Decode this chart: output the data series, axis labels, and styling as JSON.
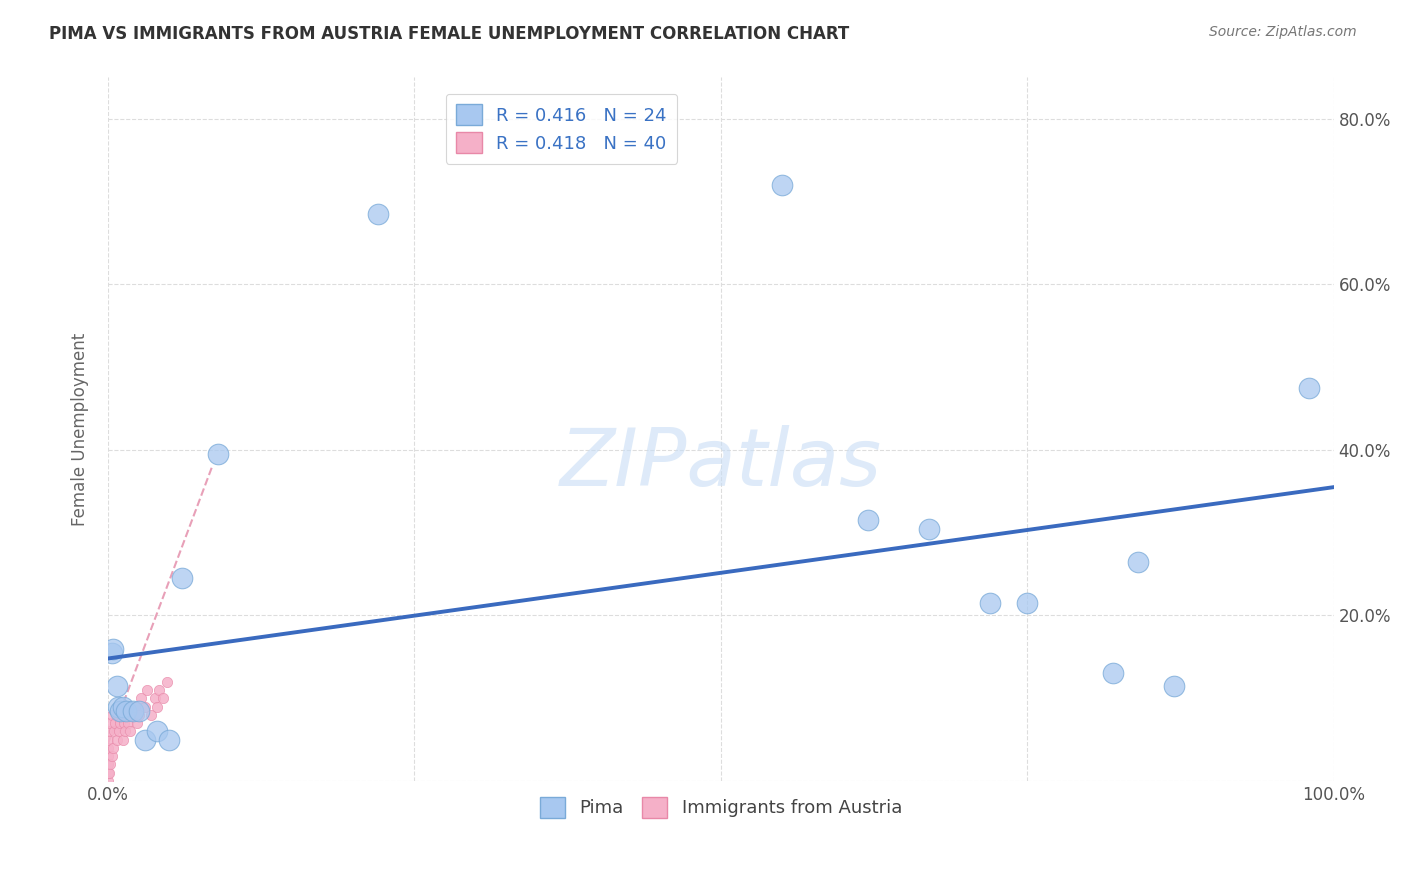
{
  "title": "PIMA VS IMMIGRANTS FROM AUSTRIA FEMALE UNEMPLOYMENT CORRELATION CHART",
  "source": "Source: ZipAtlas.com",
  "ylabel": "Female Unemployment",
  "xlim": [
    0,
    1.0
  ],
  "ylim": [
    0,
    0.85
  ],
  "y_tick_vals_right": [
    0.0,
    0.2,
    0.4,
    0.6,
    0.8
  ],
  "y_tick_labels_right": [
    "",
    "20.0%",
    "40.0%",
    "60.0%",
    "80.0%"
  ],
  "pima_color": "#a8c8f0",
  "pima_edge_color": "#7aaad8",
  "austria_color": "#f5b0c8",
  "austria_edge_color": "#e888a8",
  "background_color": "#ffffff",
  "pima_points_x": [
    0.003,
    0.004,
    0.007,
    0.008,
    0.01,
    0.012,
    0.015,
    0.02,
    0.025,
    0.03,
    0.04,
    0.05,
    0.06,
    0.09,
    0.22,
    0.55,
    0.62,
    0.67,
    0.72,
    0.75,
    0.82,
    0.84,
    0.87,
    0.98
  ],
  "pima_points_y": [
    0.155,
    0.16,
    0.115,
    0.09,
    0.085,
    0.09,
    0.085,
    0.085,
    0.085,
    0.05,
    0.06,
    0.05,
    0.245,
    0.395,
    0.685,
    0.72,
    0.315,
    0.305,
    0.215,
    0.215,
    0.13,
    0.265,
    0.115,
    0.475
  ],
  "austria_points_x": [
    0.0,
    0.0,
    0.0,
    0.0,
    0.0,
    0.0,
    0.001,
    0.001,
    0.002,
    0.002,
    0.003,
    0.003,
    0.004,
    0.005,
    0.006,
    0.007,
    0.008,
    0.009,
    0.01,
    0.011,
    0.012,
    0.013,
    0.014,
    0.015,
    0.016,
    0.017,
    0.018,
    0.02,
    0.022,
    0.024,
    0.025,
    0.027,
    0.03,
    0.032,
    0.035,
    0.038,
    0.04,
    0.042,
    0.045,
    0.048
  ],
  "austria_points_y": [
    0.0,
    0.01,
    0.02,
    0.03,
    0.04,
    0.05,
    0.01,
    0.06,
    0.02,
    0.07,
    0.03,
    0.08,
    0.04,
    0.06,
    0.07,
    0.05,
    0.08,
    0.06,
    0.07,
    0.09,
    0.05,
    0.07,
    0.06,
    0.08,
    0.07,
    0.09,
    0.06,
    0.08,
    0.09,
    0.07,
    0.08,
    0.1,
    0.09,
    0.11,
    0.08,
    0.1,
    0.09,
    0.11,
    0.1,
    0.12
  ],
  "pima_line_color": "#3a6abf",
  "pima_line_x0": 0.0,
  "pima_line_x1": 1.0,
  "pima_line_y0": 0.148,
  "pima_line_y1": 0.355,
  "austria_line_color": "#e8a0b8",
  "austria_line_x0": 0.0,
  "austria_line_x1": 0.085,
  "austria_line_y0": 0.045,
  "austria_line_y1": 0.38,
  "watermark_text": "ZIPatlas",
  "watermark_color": "#c8ddf5",
  "legend_r1_label": "R = 0.416   N = 24",
  "legend_r2_label": "R = 0.418   N = 40",
  "legend_text_color": "#3a72c4",
  "bottom_legend_labels": [
    "Pima",
    "Immigrants from Austria"
  ],
  "bottom_legend_color": "#444444"
}
